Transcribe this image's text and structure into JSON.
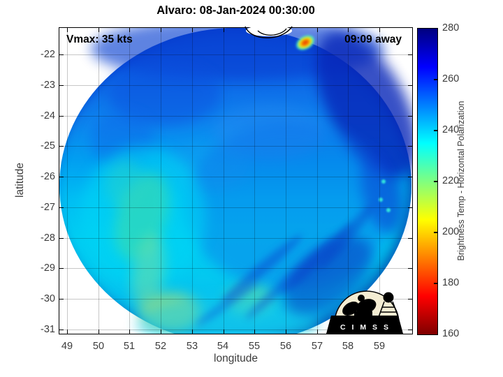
{
  "title": "Alvaro: 08-Jan-2024 00:30:00",
  "annotations": {
    "vmax": "Vmax: 35 kts",
    "time_away": "09:09 away"
  },
  "axes": {
    "xlabel": "longitude",
    "ylabel": "latitude",
    "x_ticks": [
      "49",
      "50",
      "51",
      "52",
      "53",
      "54",
      "55",
      "56",
      "57",
      "58",
      "59"
    ],
    "y_ticks": [
      "-22",
      "-23",
      "-24",
      "-25",
      "-26",
      "-27",
      "-28",
      "-29",
      "-30",
      "-31"
    ]
  },
  "colorbar": {
    "label": "Brightness Temp - Horizontal Polarization",
    "ticks": [
      "280",
      "260",
      "240",
      "220",
      "200",
      "180",
      "160"
    ],
    "min": 160,
    "max": 280,
    "colormap": "jet-reversed",
    "stop_colors": {
      "160": "#7f0000",
      "175": "#ff0000",
      "205": "#ffff00",
      "235": "#00ffff",
      "265": "#0000ff",
      "280": "#00007f"
    }
  },
  "logo": {
    "text": "C I M S S"
  },
  "chart_data": {
    "type": "heatmap",
    "title": "Alvaro: 08-Jan-2024 00:30:00",
    "xlabel": "longitude",
    "ylabel": "latitude",
    "xlim": [
      48.75,
      60.05
    ],
    "ylim": [
      -31.15,
      -21.15
    ],
    "x_ticks": [
      49,
      50,
      51,
      52,
      53,
      54,
      55,
      56,
      57,
      58,
      59
    ],
    "y_ticks": [
      -22,
      -23,
      -24,
      -25,
      -26,
      -27,
      -28,
      -29,
      -30,
      -31
    ],
    "grid": true,
    "legend_position": "right-colorbar",
    "colorbar": {
      "label": "Brightness Temp - Horizontal Polarization",
      "range": [
        160,
        280
      ],
      "ticks": [
        160,
        180,
        200,
        220,
        240,
        260,
        280
      ],
      "colormap": "jet_reversed"
    },
    "storm": {
      "name": "Alvaro",
      "vmax_kts": 35,
      "time_offset": "09:09 away",
      "datetime": "08-Jan-2024 00:30:00"
    },
    "swath": {
      "shape": "circular",
      "center_lon": 54.4,
      "center_lat": -26.3,
      "radius_lon_deg": 5.6,
      "radius_lat_deg": 5.2
    },
    "values_summary": [
      {
        "region": "upper swath lat -21.5 to -24",
        "approx_brightness_temp_K": 252
      },
      {
        "region": "upper-right edge streak lon 58-59.7, lat -22 to -26",
        "approx_brightness_temp_K": 268
      },
      {
        "region": "center-left lon 50-54, lat -26 to -29",
        "approx_brightness_temp_K": 238
      },
      {
        "region": "green patches lower-left lon 51-52.5",
        "approx_brightness_temp_K": 226
      },
      {
        "region": "yellow-green spot lon 52.4, lat -30.3",
        "approx_brightness_temp_K": 214
      },
      {
        "region": "lower-right blue sector lon 55-58, lat -27.5 to -30",
        "approx_brightness_temp_K": 250
      },
      {
        "region": "dark navy streaks lon 55.5-57.5, lat -28.5 to -30",
        "approx_brightness_temp_K": 264
      },
      {
        "region": "convective hotspot lon 56.6, lat -21.6",
        "approx_brightness_temp_K": 185
      }
    ]
  }
}
